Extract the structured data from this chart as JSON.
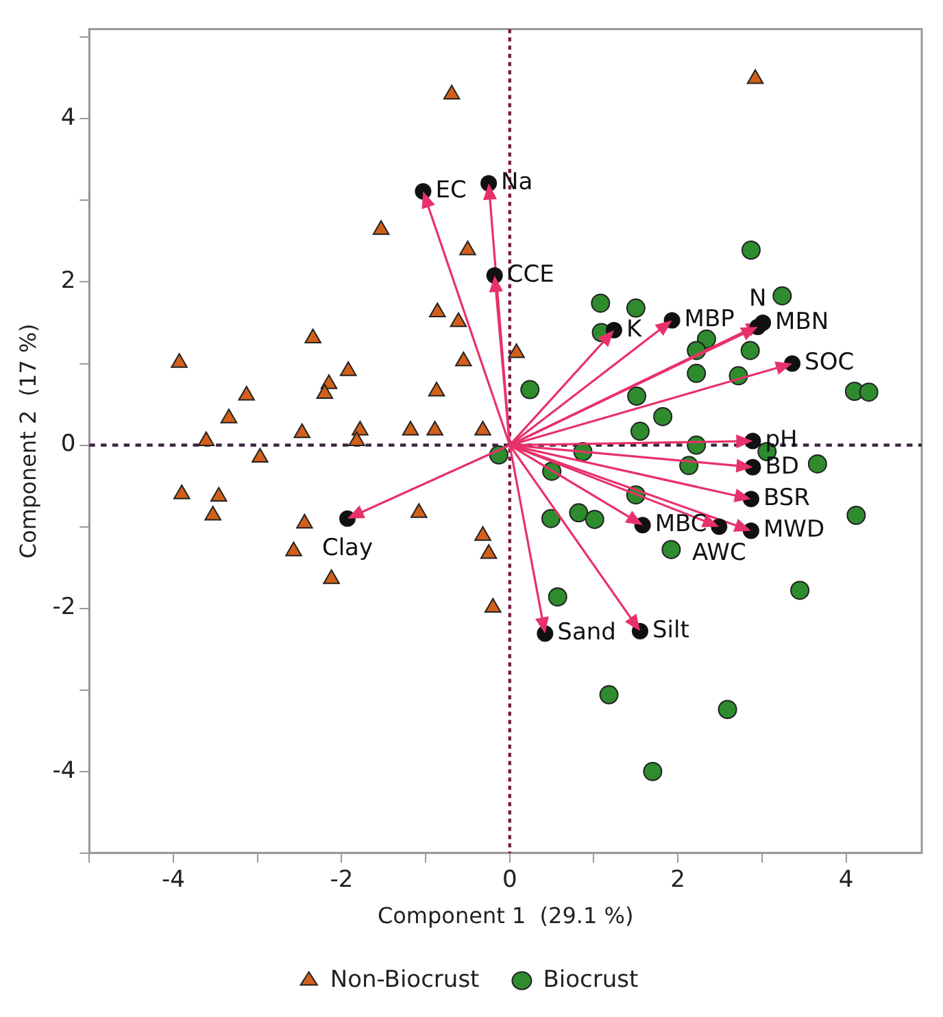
{
  "chart_data": {
    "type": "scatter",
    "xlabel": "Component 1  (29.1 %)",
    "ylabel": "Component 2  (17 %)",
    "xlim": [
      -5,
      4.9
    ],
    "ylim": [
      -5,
      5.1
    ],
    "xticks": [
      {
        "value": -5,
        "label": null
      },
      -4,
      {
        "value": -3,
        "label": null
      },
      -2,
      {
        "value": -1,
        "label": null
      },
      0,
      {
        "value": 1,
        "label": null
      },
      2,
      {
        "value": 3,
        "label": null
      },
      4
    ],
    "yticks": [
      {
        "value": -5,
        "label": null
      },
      -4,
      {
        "value": -3,
        "label": null
      },
      -2,
      {
        "value": -1,
        "label": null
      },
      0,
      {
        "value": 1,
        "label": null
      },
      2,
      {
        "value": 3,
        "label": null
      },
      4,
      {
        "value": 5,
        "label": null
      }
    ],
    "grid": false,
    "legend": "bottom",
    "series": [
      {
        "name": "Non-Biocrust",
        "color": "#d2601a",
        "marker": "triangle",
        "x": [
          -3.93,
          -3.13,
          -3.34,
          -3.61,
          -2.34,
          -1.92,
          -2.15,
          -2.2,
          -2.47,
          -1.78,
          -1.82,
          -1.18,
          -0.89,
          -0.32,
          -0.87,
          -0.55,
          -0.61,
          -0.86,
          -1.53,
          -0.5,
          -0.69,
          0.08,
          -2.97,
          -3.9,
          -3.46,
          -3.53,
          -2.44,
          -2.57,
          -2.12,
          -1.08,
          -0.32,
          -0.25,
          -0.2,
          2.92
        ],
        "values": [
          1.01,
          0.61,
          0.33,
          0.05,
          1.31,
          0.91,
          0.75,
          0.63,
          0.15,
          0.18,
          0.05,
          0.18,
          0.18,
          0.18,
          0.66,
          1.03,
          1.51,
          1.63,
          2.64,
          2.39,
          4.3,
          1.13,
          -0.15,
          -0.6,
          -0.63,
          -0.86,
          -0.96,
          -1.3,
          -1.64,
          -0.83,
          -1.11,
          -1.33,
          -1.99,
          4.49
        ]
      },
      {
        "name": "Biocrust",
        "color": "#2e8b2e",
        "marker": "circle",
        "x": [
          2.87,
          3.24,
          1.08,
          1.5,
          1.09,
          2.34,
          2.22,
          2.86,
          2.22,
          2.72,
          0.24,
          1.51,
          4.1,
          4.27,
          1.82,
          1.55,
          -0.13,
          0.87,
          2.22,
          2.13,
          3.06,
          3.66,
          0.5,
          1.5,
          0.49,
          0.82,
          1.01,
          1.92,
          4.12,
          3.45,
          0.57,
          1.18,
          2.59,
          1.7
        ],
        "values": [
          2.39,
          1.83,
          1.74,
          1.68,
          1.38,
          1.3,
          1.16,
          1.16,
          0.88,
          0.85,
          0.68,
          0.6,
          0.66,
          0.65,
          0.35,
          0.17,
          -0.12,
          -0.08,
          0,
          -0.25,
          -0.08,
          -0.23,
          -0.32,
          -0.61,
          -0.9,
          -0.83,
          -0.91,
          -1.28,
          -0.86,
          -1.78,
          -1.86,
          -3.06,
          -3.24,
          -4
        ]
      }
    ],
    "ref_lines": [
      {
        "axis": "x",
        "value": 0,
        "color": "#7a1a45",
        "line_style": "dotted"
      },
      {
        "axis": "y",
        "value": 0,
        "color": "#3b2340",
        "line_style": "dotted"
      }
    ],
    "annotations": [
      {
        "text": "EC",
        "x": -1.03,
        "y": 3.11
      },
      {
        "text": "Na",
        "x": -0.25,
        "y": 3.21
      },
      {
        "text": "CCE",
        "x": -0.18,
        "y": 2.08
      },
      {
        "text": "K",
        "x": 1.24,
        "y": 1.41
      },
      {
        "text": "MBP",
        "x": 1.93,
        "y": 1.53
      },
      {
        "text": "MBN",
        "x": 3.01,
        "y": 1.5
      },
      {
        "text": "N",
        "x": 2.95,
        "y": 1.45
      },
      {
        "text": "SOC",
        "x": 3.36,
        "y": 1.0
      },
      {
        "text": "pH",
        "x": 2.89,
        "y": 0.05
      },
      {
        "text": "BD",
        "x": 2.89,
        "y": -0.27
      },
      {
        "text": "BSR",
        "x": 2.87,
        "y": -0.66
      },
      {
        "text": "MWD",
        "x": 2.87,
        "y": -1.05
      },
      {
        "text": "AWC",
        "x": 2.49,
        "y": -1.0
      },
      {
        "text": "MBC",
        "x": 1.58,
        "y": -0.98
      },
      {
        "text": "Sand",
        "x": 0.42,
        "y": -2.31
      },
      {
        "text": "Silt",
        "x": 1.55,
        "y": -2.28
      },
      {
        "text": "Clay",
        "x": -1.93,
        "y": -0.9
      }
    ]
  }
}
